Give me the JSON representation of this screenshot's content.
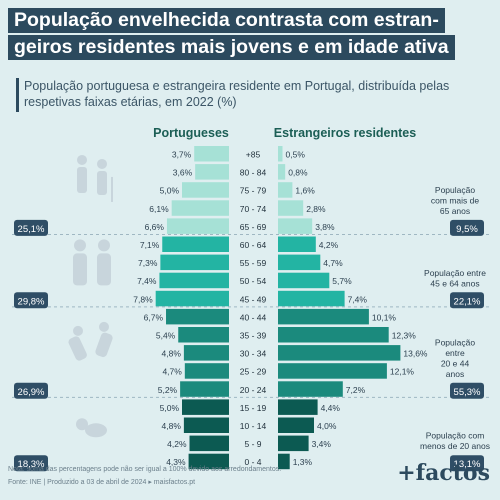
{
  "header": {
    "title_line1": "População envelhecida contrasta com estran-",
    "title_line2": "geiros residentes mais jovens e em idade ativa",
    "subtitle_line1": "População portuguesa e estrangeira residente em Portugal, distribuída pelas",
    "subtitle_line2": "respetivas faixas etárias, em 2022 (%)"
  },
  "colors": {
    "background": "#dfeef0",
    "title_bg": "#2c4a5e",
    "group1": "#a6e1d6",
    "group2": "#23b4a3",
    "group3": "#1b8a7d",
    "group4": "#0c5a52",
    "pill": "#2f4e66"
  },
  "chart_data": {
    "type": "bar",
    "orientation": "horizontal-pyramid",
    "series": [
      {
        "name": "Portugueses",
        "values": [
          3.7,
          3.6,
          5.0,
          6.1,
          6.6,
          7.1,
          7.3,
          7.4,
          7.8,
          6.7,
          5.4,
          4.8,
          4.7,
          5.2,
          5.0,
          4.8,
          4.2,
          4.3
        ]
      },
      {
        "name": "Estrangeiros residentes",
        "values": [
          0.5,
          0.8,
          1.6,
          2.8,
          3.8,
          4.2,
          4.7,
          5.7,
          7.4,
          10.1,
          12.3,
          13.6,
          12.1,
          7.2,
          4.4,
          4.0,
          3.4,
          1.3
        ]
      }
    ],
    "categories": [
      "+85",
      "80 - 84",
      "75 - 79",
      "70 - 74",
      "65 - 69",
      "60 - 64",
      "55 - 59",
      "50 - 54",
      "45 - 49",
      "40 - 44",
      "35 - 39",
      "30 - 34",
      "25 - 29",
      "20 - 24",
      "15 - 19",
      "10 - 14",
      "5 - 9",
      "0 - 4"
    ],
    "value_labels": {
      "portugueses": [
        "3,7%",
        "3,6%",
        "5,0%",
        "6,1%",
        "6,6%",
        "7,1%",
        "7,3%",
        "7,4%",
        "7,8%",
        "6,7%",
        "5,4%",
        "4,8%",
        "4,7%",
        "5,2%",
        "5,0%",
        "4,8%",
        "4,2%",
        "4,3%"
      ],
      "estrangeiros": [
        "0,5%",
        "0,8%",
        "1,6%",
        "2,8%",
        "3,8%",
        "4,2%",
        "4,7%",
        "5,7%",
        "7,4%",
        "10,1%",
        "12,3%",
        "13,6%",
        "12,1%",
        "7,2%",
        "4,4%",
        "4,0%",
        "3,4%",
        "1,3%"
      ]
    },
    "groups": [
      {
        "rows": [
          0,
          4
        ],
        "icon": "elderly-couple-icon",
        "left_total": "25,1%",
        "right_total": "9,5%",
        "right_label": [
          "População",
          "com mais de",
          "65 anos"
        ]
      },
      {
        "rows": [
          5,
          8
        ],
        "icon": "adults-icon",
        "left_total": "29,8%",
        "right_total": "22,1%",
        "right_label": [
          "População entre",
          "45 e 64 anos"
        ]
      },
      {
        "rows": [
          9,
          13
        ],
        "icon": "young-adults-icon",
        "left_total": "26,9%",
        "right_total": "55,3%",
        "right_label": [
          "População",
          "entre",
          "20 e 44",
          "anos"
        ]
      },
      {
        "rows": [
          14,
          17
        ],
        "icon": "baby-icon",
        "left_total": "18,3%",
        "right_total": "13,1%",
        "right_label": [
          "População com",
          "menos de 20 anos"
        ]
      }
    ],
    "legend": "top"
  },
  "footer": {
    "note": "Nota: soma das percentagens pode não ser igual a 100% devido aos arredondamentos.",
    "source": "Fonte: INE | Produzido a 03 de abril de 2024 ▸ maisfactos.pt",
    "logo": "+factos"
  }
}
